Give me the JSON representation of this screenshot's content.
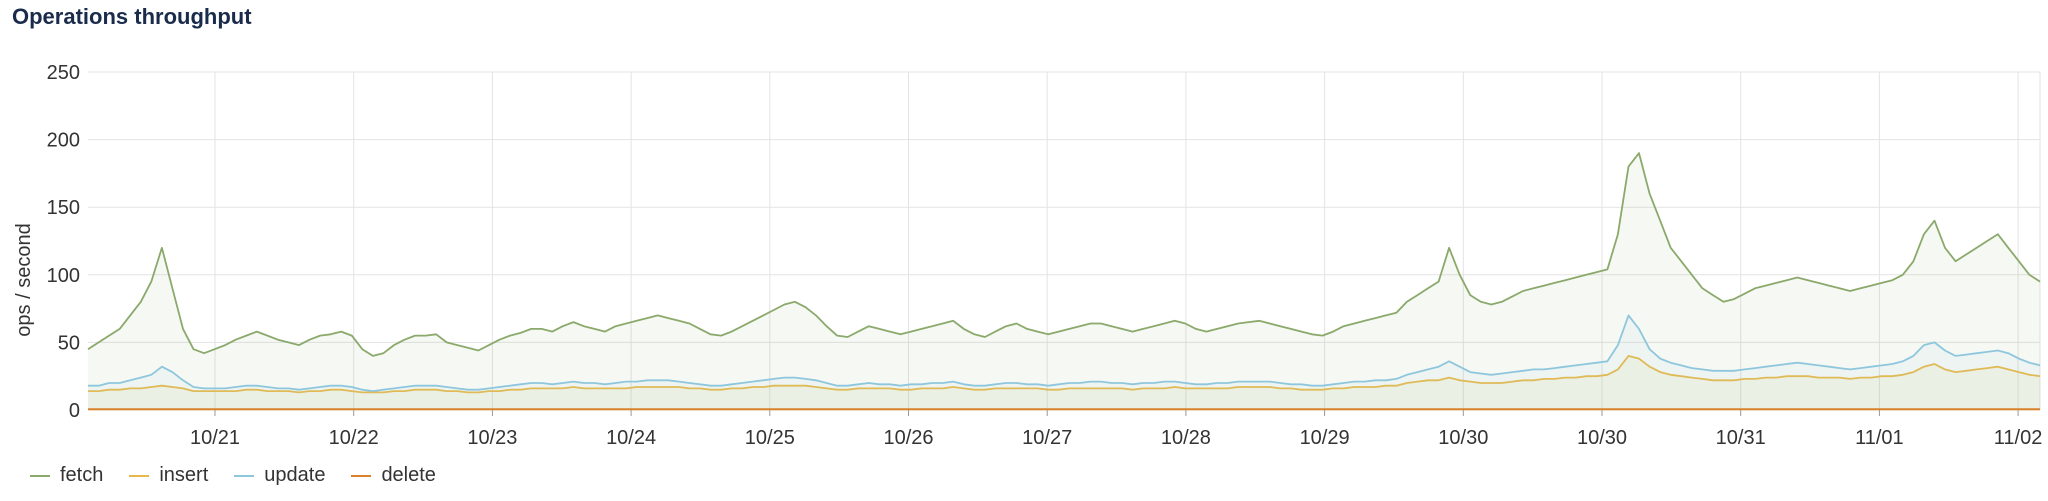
{
  "page": {
    "title": "Operations throughput"
  },
  "colors": {
    "fetch": "#8aa96b",
    "insert": "#e7b94d",
    "update": "#8ec7dd",
    "delete": "#d9822b",
    "grid": "#e3e3e3"
  },
  "chart_data": {
    "type": "line",
    "title": "Operations throughput",
    "xlabel": "",
    "ylabel": "ops / second",
    "ylim": [
      0,
      250
    ],
    "yticks": [
      0,
      50,
      100,
      150,
      200,
      250
    ],
    "xticks": [
      "10/21",
      "10/22",
      "10/23",
      "10/24",
      "10/25",
      "10/26",
      "10/27",
      "10/28",
      "10/29",
      "10/30",
      "10/30",
      "10/31",
      "11/01",
      "11/02"
    ],
    "grid": true,
    "legend_position": "bottom-left",
    "series": [
      {
        "name": "fetch",
        "values": [
          45,
          50,
          55,
          60,
          70,
          80,
          95,
          120,
          90,
          60,
          45,
          42,
          45,
          48,
          52,
          55,
          58,
          55,
          52,
          50,
          48,
          52,
          55,
          56,
          58,
          55,
          45,
          40,
          42,
          48,
          52,
          55,
          55,
          56,
          50,
          48,
          46,
          44,
          48,
          52,
          55,
          57,
          60,
          60,
          58,
          62,
          65,
          62,
          60,
          58,
          62,
          64,
          66,
          68,
          70,
          68,
          66,
          64,
          60,
          56,
          55,
          58,
          62,
          66,
          70,
          74,
          78,
          80,
          76,
          70,
          62,
          55,
          54,
          58,
          62,
          60,
          58,
          56,
          58,
          60,
          62,
          64,
          66,
          60,
          56,
          54,
          58,
          62,
          64,
          60,
          58,
          56,
          58,
          60,
          62,
          64,
          64,
          62,
          60,
          58,
          60,
          62,
          64,
          66,
          64,
          60,
          58,
          60,
          62,
          64,
          65,
          66,
          64,
          62,
          60,
          58,
          56,
          55,
          58,
          62,
          64,
          66,
          68,
          70,
          72,
          80,
          85,
          90,
          95,
          120,
          100,
          85,
          80,
          78,
          80,
          84,
          88,
          90,
          92,
          94,
          96,
          98,
          100,
          102,
          104,
          130,
          180,
          190,
          160,
          140,
          120,
          110,
          100,
          90,
          85,
          80,
          82,
          86,
          90,
          92,
          94,
          96,
          98,
          96,
          94,
          92,
          90,
          88,
          90,
          92,
          94,
          96,
          100,
          110,
          130,
          140,
          120,
          110,
          115,
          120,
          125,
          130,
          120,
          110,
          100,
          95
        ]
      },
      {
        "name": "insert",
        "values": [
          14,
          14,
          15,
          15,
          16,
          16,
          17,
          18,
          17,
          16,
          14,
          14,
          14,
          14,
          14,
          15,
          15,
          14,
          14,
          14,
          13,
          14,
          14,
          15,
          15,
          14,
          13,
          13,
          13,
          14,
          14,
          15,
          15,
          15,
          14,
          14,
          13,
          13,
          14,
          14,
          15,
          15,
          16,
          16,
          16,
          16,
          17,
          16,
          16,
          16,
          16,
          16,
          17,
          17,
          17,
          17,
          17,
          16,
          16,
          15,
          15,
          16,
          16,
          17,
          17,
          18,
          18,
          18,
          18,
          17,
          16,
          15,
          15,
          16,
          16,
          16,
          16,
          15,
          15,
          16,
          16,
          16,
          17,
          16,
          15,
          15,
          16,
          16,
          16,
          16,
          16,
          15,
          15,
          16,
          16,
          16,
          16,
          16,
          16,
          15,
          16,
          16,
          16,
          17,
          16,
          16,
          16,
          16,
          16,
          17,
          17,
          17,
          17,
          16,
          16,
          15,
          15,
          15,
          16,
          16,
          17,
          17,
          17,
          18,
          18,
          20,
          21,
          22,
          22,
          24,
          22,
          21,
          20,
          20,
          20,
          21,
          22,
          22,
          23,
          23,
          24,
          24,
          25,
          25,
          26,
          30,
          40,
          38,
          32,
          28,
          26,
          25,
          24,
          23,
          22,
          22,
          22,
          23,
          23,
          24,
          24,
          25,
          25,
          25,
          24,
          24,
          24,
          23,
          24,
          24,
          25,
          25,
          26,
          28,
          32,
          34,
          30,
          28,
          29,
          30,
          31,
          32,
          30,
          28,
          26,
          25
        ]
      },
      {
        "name": "update",
        "values": [
          18,
          18,
          20,
          20,
          22,
          24,
          26,
          32,
          28,
          22,
          17,
          16,
          16,
          16,
          17,
          18,
          18,
          17,
          16,
          16,
          15,
          16,
          17,
          18,
          18,
          17,
          15,
          14,
          15,
          16,
          17,
          18,
          18,
          18,
          17,
          16,
          15,
          15,
          16,
          17,
          18,
          19,
          20,
          20,
          19,
          20,
          21,
          20,
          20,
          19,
          20,
          21,
          21,
          22,
          22,
          22,
          21,
          20,
          19,
          18,
          18,
          19,
          20,
          21,
          22,
          23,
          24,
          24,
          23,
          22,
          20,
          18,
          18,
          19,
          20,
          19,
          19,
          18,
          19,
          19,
          20,
          20,
          21,
          19,
          18,
          18,
          19,
          20,
          20,
          19,
          19,
          18,
          19,
          20,
          20,
          21,
          21,
          20,
          20,
          19,
          20,
          20,
          21,
          21,
          20,
          19,
          19,
          20,
          20,
          21,
          21,
          21,
          21,
          20,
          19,
          19,
          18,
          18,
          19,
          20,
          21,
          21,
          22,
          22,
          23,
          26,
          28,
          30,
          32,
          36,
          32,
          28,
          27,
          26,
          27,
          28,
          29,
          30,
          30,
          31,
          32,
          33,
          34,
          35,
          36,
          48,
          70,
          60,
          45,
          38,
          35,
          33,
          31,
          30,
          29,
          29,
          29,
          30,
          31,
          32,
          33,
          34,
          35,
          34,
          33,
          32,
          31,
          30,
          31,
          32,
          33,
          34,
          36,
          40,
          48,
          50,
          44,
          40,
          41,
          42,
          43,
          44,
          42,
          38,
          35,
          33
        ]
      },
      {
        "name": "delete",
        "values": [
          0.5,
          0.5,
          0.5,
          0.5,
          0.5,
          0.5,
          0.5,
          0.5,
          0.5,
          0.5,
          0.5,
          0.5,
          0.5,
          0.5,
          0.5,
          0.5,
          0.5,
          0.5,
          0.5,
          0.5,
          0.5,
          0.5,
          0.5,
          0.5,
          0.5,
          0.5,
          0.5,
          0.5,
          0.5,
          0.5,
          0.5,
          0.5,
          0.5,
          0.5,
          0.5,
          0.5,
          0.5,
          0.5,
          0.5,
          0.5,
          0.5,
          0.5,
          0.5,
          0.5,
          0.5,
          0.5,
          0.5,
          0.5,
          0.5,
          0.5,
          0.5,
          0.5,
          0.5,
          0.5,
          0.5,
          0.5,
          0.5,
          0.5,
          0.5,
          0.5,
          0.5,
          0.5,
          0.5,
          0.5,
          0.5,
          0.5,
          0.5,
          0.5,
          0.5,
          0.5,
          0.5,
          0.5,
          0.5,
          0.5,
          0.5,
          0.5,
          0.5,
          0.5,
          0.5,
          0.5,
          0.5,
          0.5,
          0.5,
          0.5,
          0.5,
          0.5,
          0.5,
          0.5,
          0.5,
          0.5,
          0.5,
          0.5,
          0.5,
          0.5,
          0.5,
          0.5,
          0.5,
          0.5,
          0.5,
          0.5,
          0.5,
          0.5,
          0.5,
          0.5,
          0.5,
          0.5,
          0.5,
          0.5,
          0.5,
          0.5,
          0.5,
          0.5,
          0.5,
          0.5,
          0.5,
          0.5,
          0.5,
          0.5,
          0.5,
          0.5,
          0.5,
          0.5,
          0.5,
          0.5,
          0.5,
          0.5,
          0.5,
          0.5,
          0.5,
          0.5,
          0.5,
          0.5,
          0.5,
          0.5,
          0.5,
          0.5,
          0.5,
          0.5,
          0.5,
          0.5,
          0.5,
          0.5,
          0.5,
          0.5,
          0.5,
          0.5,
          0.5,
          0.5,
          0.5,
          0.5,
          0.5,
          0.5,
          0.5,
          0.5,
          0.5,
          0.5,
          0.5,
          0.5,
          0.5,
          0.5,
          0.5,
          0.5,
          0.5,
          0.5,
          0.5,
          0.5,
          0.5,
          0.5,
          0.5,
          0.5,
          0.5,
          0.5,
          0.5,
          0.5,
          0.5,
          0.5,
          0.5,
          0.5,
          0.5,
          0.5,
          0.5,
          0.5,
          0.5,
          0.5,
          0.5,
          0.5,
          0.5,
          0.5,
          0.5,
          0.5
        ]
      }
    ]
  }
}
